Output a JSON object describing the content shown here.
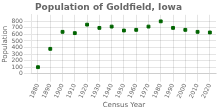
{
  "chart_data": {
    "type": "scatter",
    "title": "Population of Goldfield, Iowa",
    "xlabel": "Census Year",
    "ylabel": "Population",
    "x": [
      1880,
      1890,
      1900,
      1910,
      1920,
      1930,
      1940,
      1950,
      1960,
      1970,
      1980,
      1990,
      2000,
      2010,
      2020
    ],
    "values": [
      100,
      380,
      640,
      620,
      750,
      700,
      720,
      660,
      670,
      720,
      800,
      700,
      670,
      640,
      630
    ],
    "color": "#006400",
    "marker": "square",
    "xlim": [
      1875,
      2025
    ],
    "ylim": [
      0,
      900
    ],
    "xticks": [
      1880,
      1890,
      1900,
      1910,
      1920,
      1930,
      1940,
      1950,
      1960,
      1970,
      1980,
      1990,
      2000,
      2010,
      2020
    ],
    "yticks": [
      0,
      100,
      200,
      300,
      400,
      500,
      600,
      700,
      800
    ],
    "grid": true
  }
}
